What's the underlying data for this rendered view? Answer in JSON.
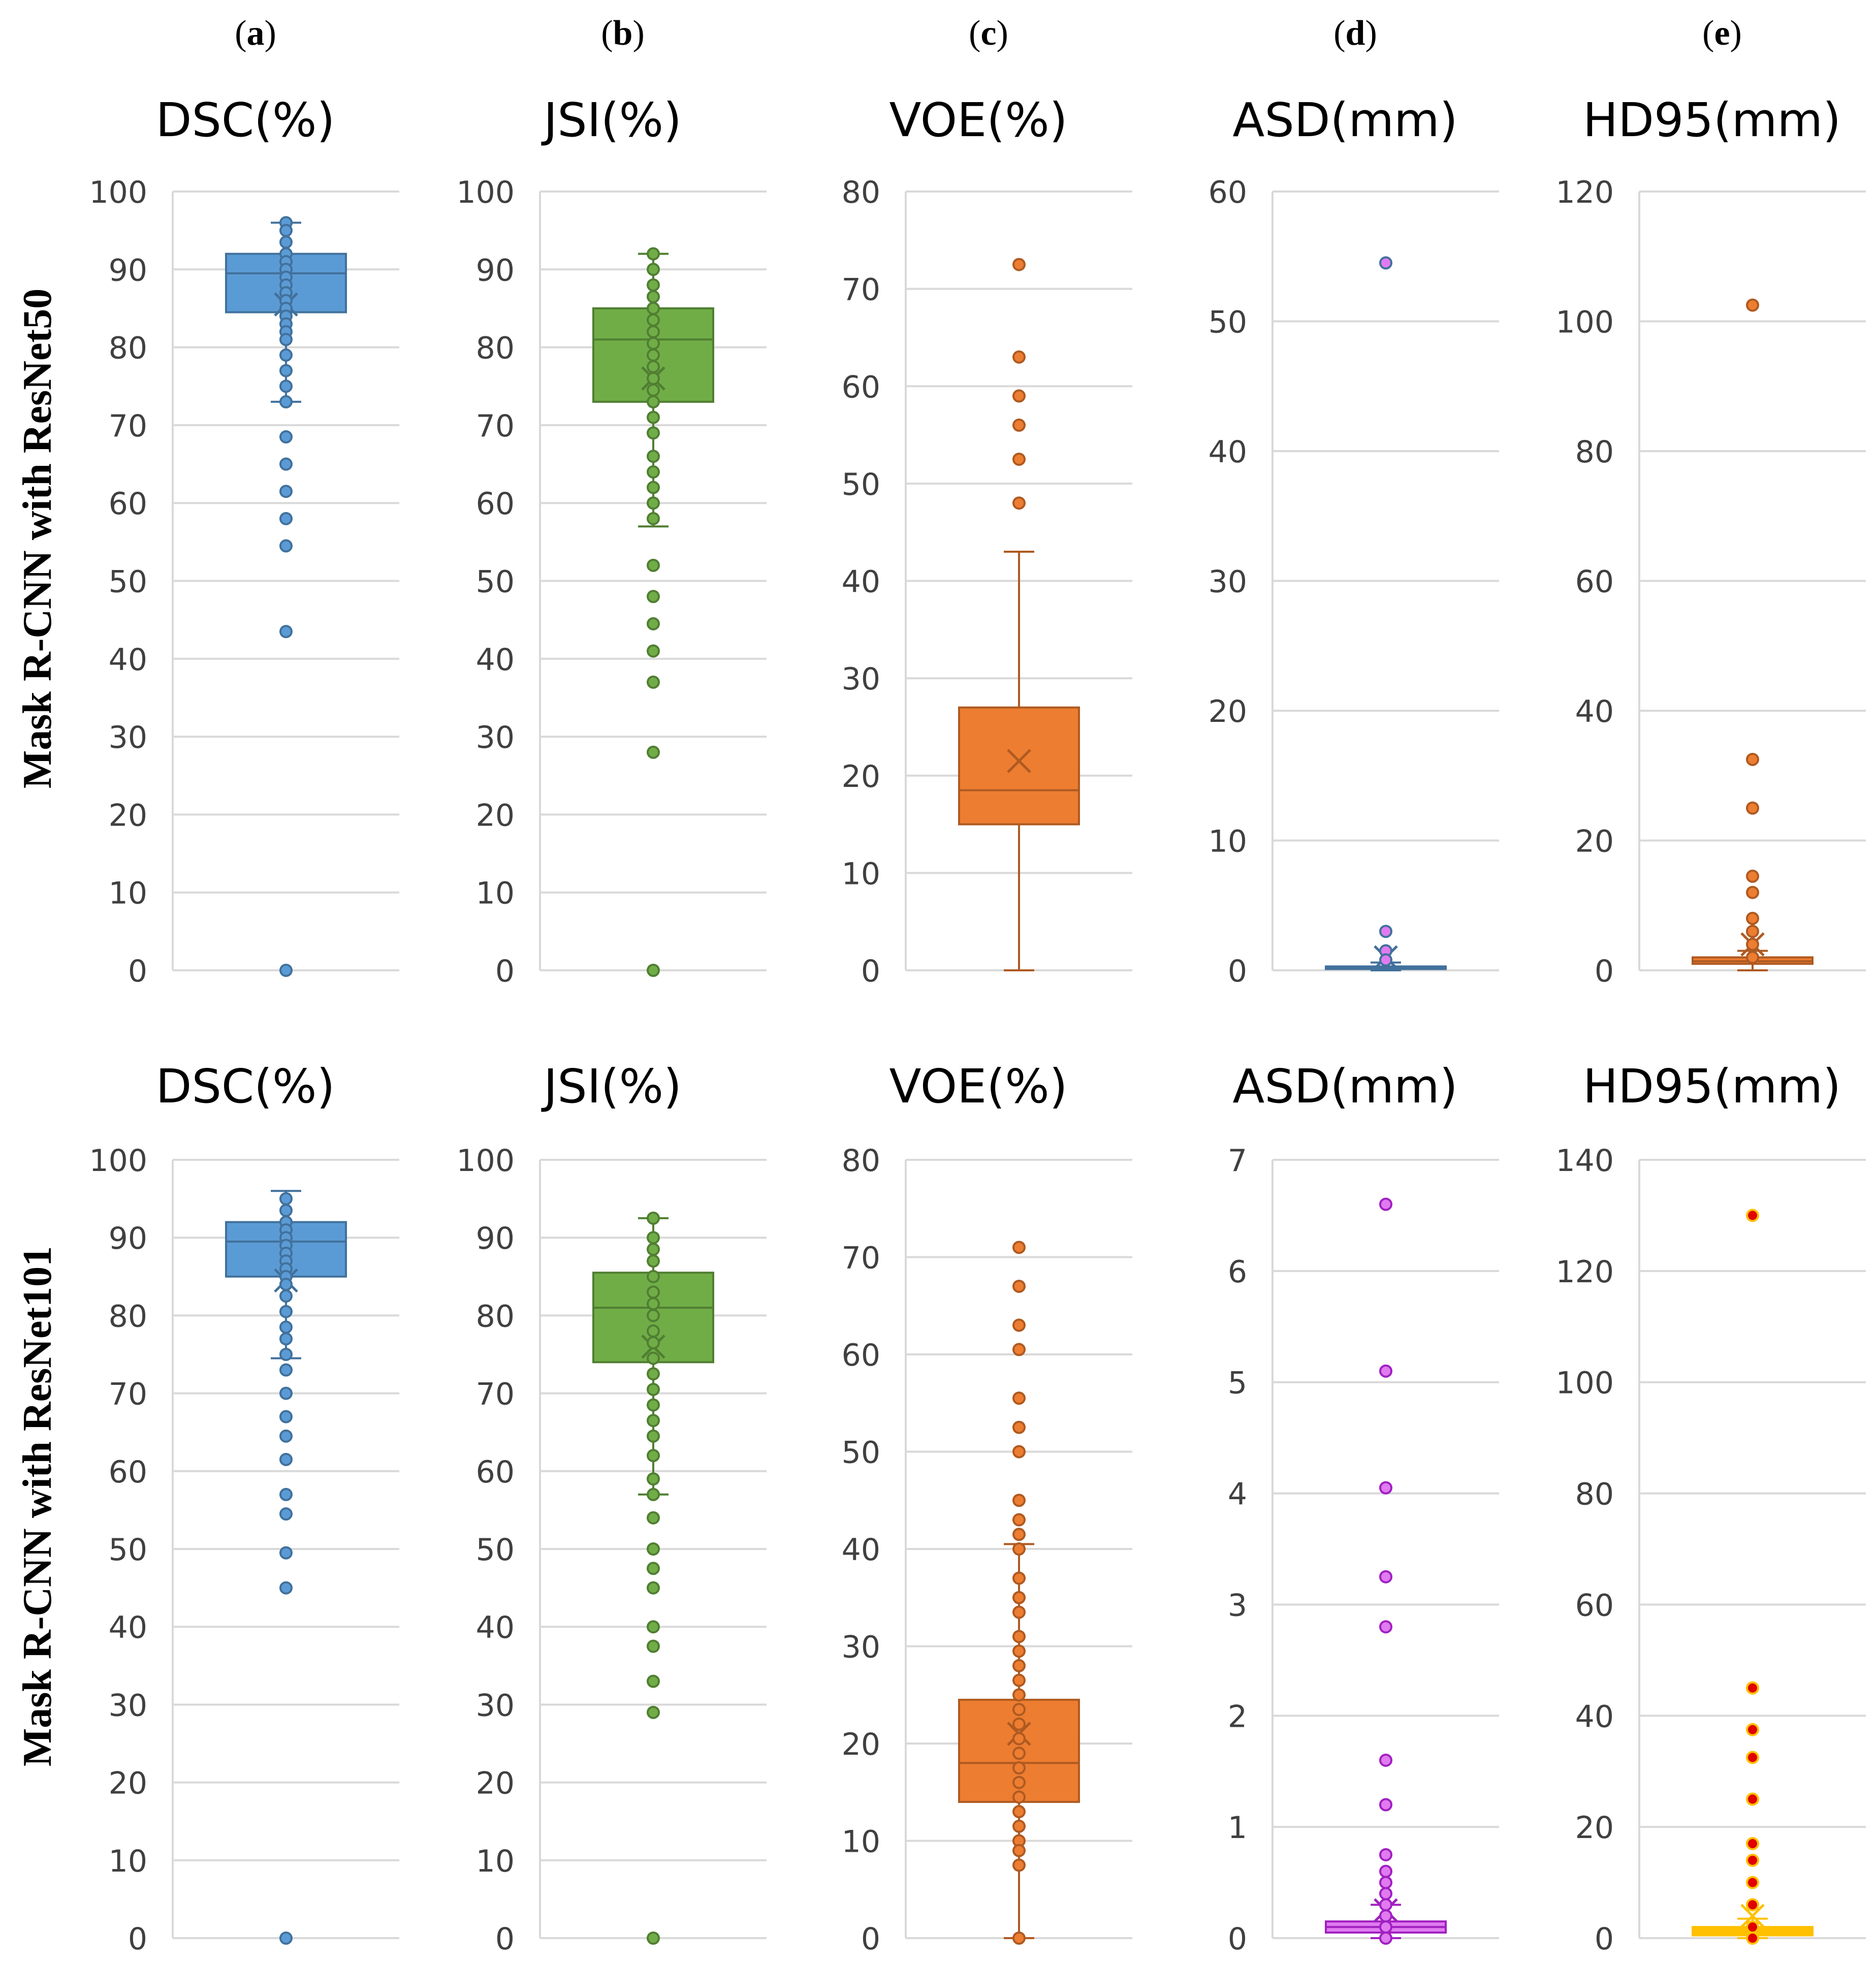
{
  "panel_labels": [
    {
      "open": "(",
      "letter": "a",
      "close": ")"
    },
    {
      "open": "(",
      "letter": "b",
      "close": ")"
    },
    {
      "open": "(",
      "letter": "c",
      "close": ")"
    },
    {
      "open": "(",
      "letter": "d",
      "close": ")"
    },
    {
      "open": "(",
      "letter": "e",
      "close": ")"
    }
  ],
  "row_labels": [
    "Mask R-CNN with ResNet50",
    "Mask R-CNN with ResNet101"
  ],
  "colors": {
    "blue": "#5B9BD5",
    "blue_dark": "#41719C",
    "green": "#70AD47",
    "green_dark": "#507E32",
    "orange": "#ED7D31",
    "orange_dark": "#AE5A21",
    "magenta": "#E07BF0",
    "magenta_dark": "#A020C0",
    "gold": "#FFC000",
    "red": "#E00000",
    "grid": "#D9D9D9",
    "axis_text": "#404040"
  },
  "chart_data": [
    {
      "type": "box",
      "row": 0,
      "col": 0,
      "title": "DSC(%)",
      "ylim": [
        0,
        100
      ],
      "ticks": [
        0,
        10,
        20,
        30,
        40,
        50,
        60,
        70,
        80,
        90,
        100
      ],
      "box": {
        "q1": 84.5,
        "median": 89.5,
        "q3": 92,
        "whisker_low": 73,
        "whisker_high": 96,
        "mean": 85.5
      },
      "points": [
        96,
        95,
        93.5,
        92,
        91,
        90,
        89,
        88,
        87,
        86,
        85,
        84,
        83,
        82,
        81,
        79,
        77,
        75,
        73,
        68.5,
        65,
        61.5,
        58,
        54.5,
        43.5,
        0
      ],
      "fill": "blue",
      "stroke": "blue_dark",
      "marker": "blue",
      "marker_stroke": "blue_dark"
    },
    {
      "type": "box",
      "row": 0,
      "col": 1,
      "title": "JSI(%)",
      "ylim": [
        0,
        100
      ],
      "ticks": [
        0,
        10,
        20,
        30,
        40,
        50,
        60,
        70,
        80,
        90,
        100
      ],
      "box": {
        "q1": 73,
        "median": 81,
        "q3": 85,
        "whisker_low": 57,
        "whisker_high": 92,
        "mean": 76
      },
      "points": [
        92,
        90,
        88,
        86.5,
        85,
        83.5,
        82,
        80.5,
        79,
        77.5,
        76,
        74.5,
        73,
        71,
        69,
        66,
        64,
        62,
        60,
        58,
        52,
        48,
        44.5,
        41,
        37,
        28,
        0
      ],
      "fill": "green",
      "stroke": "green_dark",
      "marker": "green",
      "marker_stroke": "green_dark"
    },
    {
      "type": "box",
      "row": 0,
      "col": 2,
      "title": "VOE(%)",
      "ylim": [
        0,
        80
      ],
      "ticks": [
        0,
        10,
        20,
        30,
        40,
        50,
        60,
        70,
        80
      ],
      "box": {
        "q1": 15,
        "median": 18.5,
        "q3": 27,
        "whisker_low": 0,
        "whisker_high": 43,
        "mean": 21.5
      },
      "points": [
        72.5,
        63,
        59,
        56,
        52.5,
        48
      ],
      "fill": "orange",
      "stroke": "orange_dark",
      "marker": "orange",
      "marker_stroke": "orange_dark"
    },
    {
      "type": "box",
      "row": 0,
      "col": 3,
      "title": "ASD(mm)",
      "ylim": [
        0,
        60
      ],
      "ticks": [
        0,
        10,
        20,
        30,
        40,
        50,
        60
      ],
      "box": {
        "q1": 0.1,
        "median": 0.2,
        "q3": 0.3,
        "whisker_low": 0,
        "whisker_high": 0.6,
        "mean": 1.0
      },
      "points": [
        54.5,
        3.0,
        1.5,
        0.8
      ],
      "fill": "blue",
      "stroke": "blue_dark",
      "marker": "magenta",
      "marker_stroke": "blue_dark"
    },
    {
      "type": "box",
      "row": 0,
      "col": 4,
      "title": "HD95(mm)",
      "ylim": [
        0,
        120
      ],
      "ticks": [
        0,
        20,
        40,
        60,
        80,
        100,
        120
      ],
      "box": {
        "q1": 1.0,
        "median": 1.4,
        "q3": 2.0,
        "whisker_low": 0,
        "whisker_high": 3.0,
        "mean": 4
      },
      "points": [
        102.5,
        32.5,
        25,
        14.5,
        12,
        8,
        6,
        4,
        2
      ],
      "fill": "orange",
      "stroke": "orange_dark",
      "marker": "orange",
      "marker_stroke": "orange_dark"
    },
    {
      "type": "box",
      "row": 1,
      "col": 0,
      "title": "DSC(%)",
      "ylim": [
        0,
        100
      ],
      "ticks": [
        0,
        10,
        20,
        30,
        40,
        50,
        60,
        70,
        80,
        90,
        100
      ],
      "box": {
        "q1": 85,
        "median": 89.5,
        "q3": 92,
        "whisker_low": 74.5,
        "whisker_high": 96,
        "mean": 84.5
      },
      "points": [
        95,
        93.5,
        92,
        91,
        90,
        89,
        88,
        87,
        86,
        85,
        84,
        82.5,
        80.5,
        78.5,
        77,
        75,
        73,
        70,
        67,
        64.5,
        61.5,
        57,
        54.5,
        49.5,
        45,
        0
      ],
      "fill": "blue",
      "stroke": "blue_dark",
      "marker": "blue",
      "marker_stroke": "blue_dark"
    },
    {
      "type": "box",
      "row": 1,
      "col": 1,
      "title": "JSI(%)",
      "ylim": [
        0,
        100
      ],
      "ticks": [
        0,
        10,
        20,
        30,
        40,
        50,
        60,
        70,
        80,
        90,
        100
      ],
      "box": {
        "q1": 74,
        "median": 81,
        "q3": 85.5,
        "whisker_low": 57,
        "whisker_high": 92.5,
        "mean": 76
      },
      "points": [
        92.5,
        90,
        88.5,
        87,
        85,
        83,
        81.5,
        80,
        78,
        76.5,
        74.5,
        72.5,
        70.5,
        68.5,
        66.5,
        64.5,
        62,
        59,
        57,
        54,
        50,
        47.5,
        45,
        40,
        37.5,
        33,
        29,
        0
      ],
      "fill": "green",
      "stroke": "green_dark",
      "marker": "green",
      "marker_stroke": "green_dark"
    },
    {
      "type": "box",
      "row": 1,
      "col": 2,
      "title": "VOE(%)",
      "ylim": [
        0,
        80
      ],
      "ticks": [
        0,
        10,
        20,
        30,
        40,
        50,
        60,
        70,
        80
      ],
      "box": {
        "q1": 14,
        "median": 18,
        "q3": 24.5,
        "whisker_low": 0,
        "whisker_high": 40.5,
        "mean": 21
      },
      "points": [
        71,
        67,
        63,
        60.5,
        55.5,
        52.5,
        50,
        45,
        43,
        41.5,
        40,
        37,
        35,
        33.5,
        31,
        29.5,
        28,
        26.5,
        25,
        23.5,
        22,
        20.5,
        19,
        17.5,
        16,
        14.5,
        13,
        11.5,
        10,
        9,
        7.5,
        0
      ],
      "fill": "orange",
      "stroke": "orange_dark",
      "marker": "orange",
      "marker_stroke": "orange_dark"
    },
    {
      "type": "box",
      "row": 1,
      "col": 3,
      "title": "ASD(mm)",
      "ylim": [
        0,
        7
      ],
      "ticks": [
        0,
        1,
        2,
        3,
        4,
        5,
        6,
        7
      ],
      "box": {
        "q1": 0.05,
        "median": 0.1,
        "q3": 0.15,
        "whisker_low": 0,
        "whisker_high": 0.3,
        "mean": 0.25
      },
      "points": [
        6.6,
        5.1,
        4.05,
        3.25,
        2.8,
        1.6,
        1.2,
        0.75,
        0.6,
        0.5,
        0.4,
        0.3,
        0.2,
        0.1,
        0.0
      ],
      "fill": "magenta",
      "stroke": "magenta_dark",
      "marker": "magenta",
      "marker_stroke": "magenta_dark"
    },
    {
      "type": "box",
      "row": 1,
      "col": 4,
      "title": "HD95(mm)",
      "ylim": [
        0,
        140
      ],
      "ticks": [
        0,
        20,
        40,
        60,
        80,
        100,
        120,
        140
      ],
      "box": {
        "q1": 0.5,
        "median": 1.2,
        "q3": 2.0,
        "whisker_low": 0,
        "whisker_high": 3.5,
        "mean": 4
      },
      "points": [
        130,
        45,
        37.5,
        32.5,
        25,
        17,
        14,
        10,
        6,
        2,
        0
      ],
      "fill": "gold",
      "stroke": "gold",
      "marker": "red",
      "marker_stroke": "gold"
    }
  ]
}
